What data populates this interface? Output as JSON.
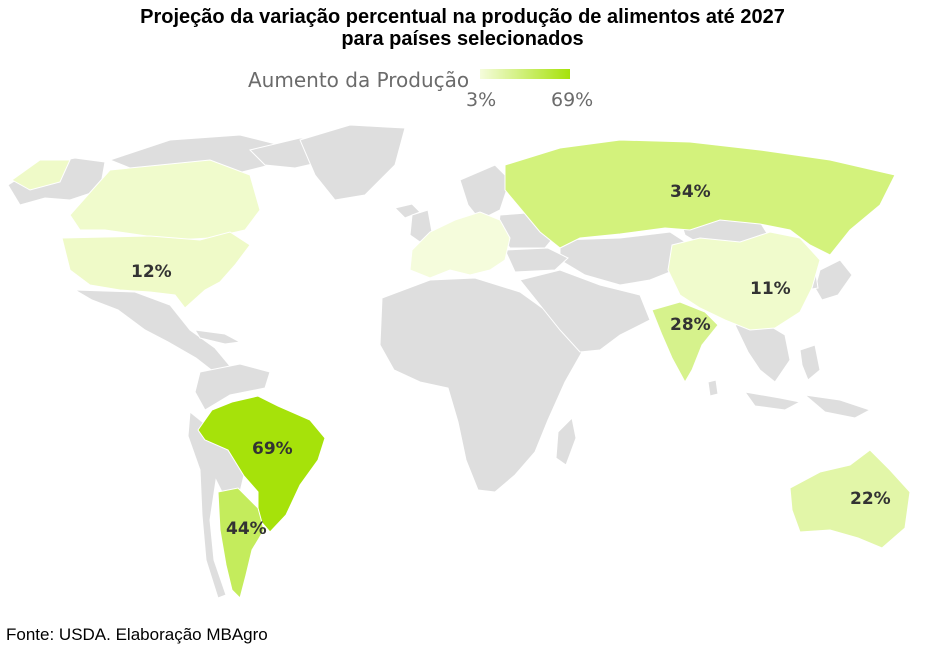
{
  "title_line1": "Projeção da variação percentual na produção de alimentos até 2027",
  "title_line2": "para países selecionados",
  "legend": {
    "label": "Aumento da Produção",
    "min": "3%",
    "max": "69%",
    "color_min": "#f5fcdc",
    "color_max": "#a6e20a"
  },
  "source": "Fonte: USDA. Elaboração MBAgro",
  "base_color": "#dedede",
  "countries": [
    {
      "name": "Brasil",
      "label": "69%",
      "value": 69,
      "color": "#a6e20a"
    },
    {
      "name": "Argentina",
      "label": "44%",
      "value": 44,
      "color": "#c4ec5c"
    },
    {
      "name": "Rússia",
      "label": "34%",
      "value": 34,
      "color": "#d3f27c"
    },
    {
      "name": "Índia",
      "label": "28%",
      "value": 28,
      "color": "#d6f28c"
    },
    {
      "name": "Austrália",
      "label": "22%",
      "value": 22,
      "color": "#e2f6a8"
    },
    {
      "name": "Estados Unidos",
      "label": "12%",
      "value": 12,
      "color": "#effac8"
    },
    {
      "name": "China",
      "label": "11%",
      "value": 11,
      "color": "#f0fbcc"
    },
    {
      "name": "Canadá",
      "value": 10,
      "color": "#f0fbcc"
    },
    {
      "name": "União Europeia",
      "value": 5,
      "color": "#f5fcdc"
    }
  ]
}
